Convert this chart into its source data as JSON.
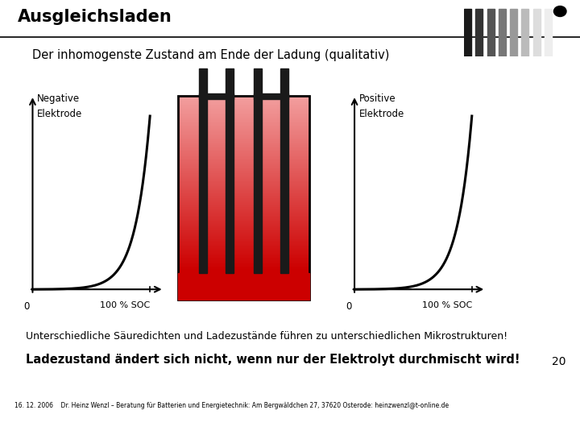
{
  "title": "Ausgleichsladen",
  "subtitle": "Der inhomogenste Zustand am Ende der Ladung (qualitativ)",
  "neg_label_line1": "Negative",
  "neg_label_line2": "Elektrode",
  "pos_label_line1": "Positive",
  "pos_label_line2": "Elektrode",
  "x_label": "100 % SOC",
  "x_zero": "0",
  "bottom_text1": "Unterschiedliche Säuredichten und Ladezustände führen zu unterschiedlichen Mikrostrukturen!",
  "bottom_text2": "Ladezustand ändert sich nicht, wenn nur der Elektrolyt durchmischt wird!",
  "footer_text": "16. 12. 2006    Dr. Heinz Wenzl – Beratung für Batterien und Energietechnik: Am Bergwäldchen 27, 37620 Osterode: heinzwenzl@t-online.de",
  "page_num": "20",
  "bg_color": "#ffffff",
  "title_color": "#000000",
  "curve_color": "#000000",
  "electrode_color": "#1a1a1a"
}
